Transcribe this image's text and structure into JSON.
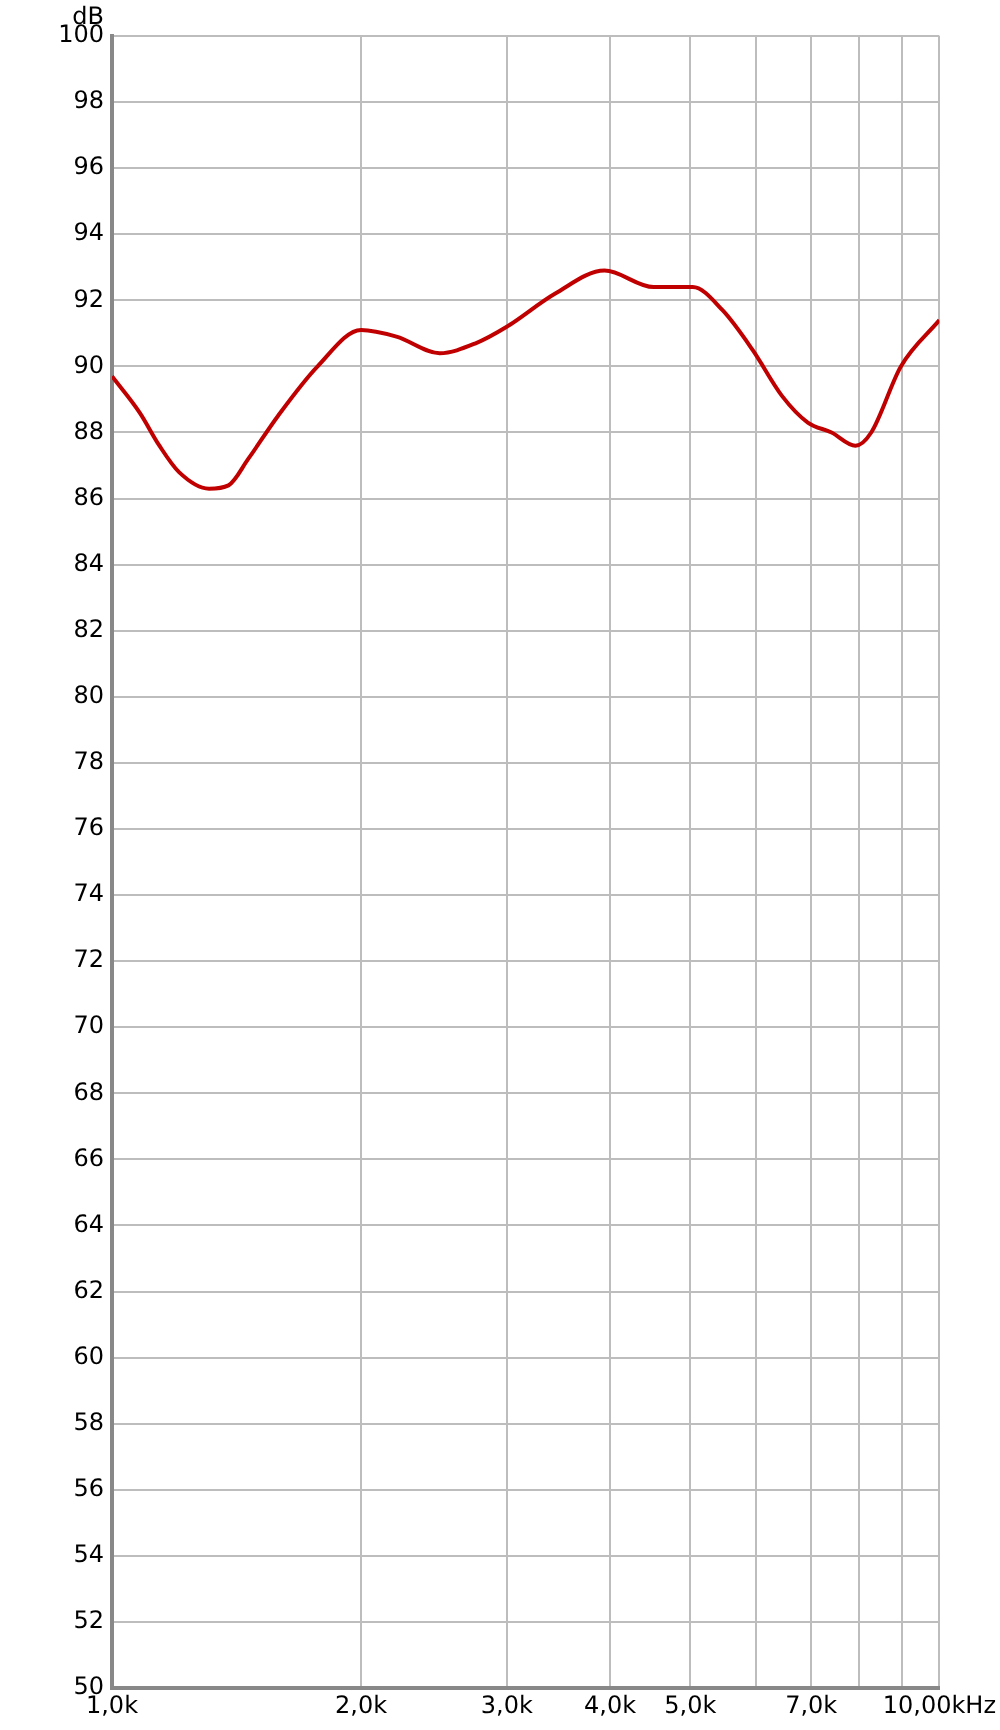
{
  "chart_data": {
    "type": "line",
    "ylabel": "dB",
    "log": "x",
    "grid": true,
    "marker": "none",
    "line_style": "solid",
    "x": [
      1.0,
      1.08,
      1.141,
      1.205,
      1.31,
      1.383,
      1.461,
      1.587,
      1.772,
      2.0,
      2.207,
      2.489,
      2.751,
      3.0,
      3.43,
      3.938,
      4.514,
      5.034,
      5.469,
      5.946,
      6.456,
      6.934,
      7.408,
      7.917,
      8.272,
      8.984,
      10.0
    ],
    "series": [
      {
        "color": "#c00000",
        "values": [
          89.7,
          88.6,
          87.6,
          86.8,
          86.3,
          86.4,
          87.2,
          88.5,
          90.0,
          91.1,
          90.9,
          90.4,
          90.7,
          91.2,
          92.2,
          92.9,
          92.4,
          92.4,
          91.7,
          90.5,
          89.1,
          88.3,
          88.0,
          87.6,
          88.0,
          90.0,
          91.4
        ]
      }
    ],
    "xlim": [
      1,
      10
    ],
    "xticks": [
      {
        "value": 1,
        "label": "1,0k"
      },
      {
        "value": 2,
        "label": "2,0k"
      },
      {
        "value": 3,
        "label": "3,0k"
      },
      {
        "value": 4,
        "label": "4,0k"
      },
      {
        "value": 5,
        "label": "5,0k"
      },
      {
        "value": 6,
        "label": null
      },
      {
        "value": 7,
        "label": "7,0k"
      },
      {
        "value": 8,
        "label": null
      },
      {
        "value": 9,
        "label": null
      },
      {
        "value": 10,
        "label": "10,00kHz"
      }
    ],
    "ylim": [
      50,
      100
    ],
    "yticks": [
      50,
      52,
      54,
      56,
      58,
      60,
      62,
      64,
      66,
      68,
      70,
      72,
      74,
      76,
      78,
      80,
      82,
      84,
      86,
      88,
      90,
      92,
      94,
      96,
      98,
      100
    ]
  }
}
